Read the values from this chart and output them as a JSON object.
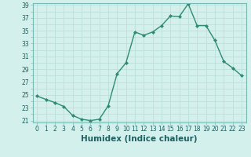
{
  "xlabel": "Humidex (Indice chaleur)",
  "hours": [
    0,
    1,
    2,
    3,
    4,
    5,
    6,
    7,
    8,
    9,
    10,
    11,
    12,
    13,
    14,
    15,
    16,
    17,
    18,
    19,
    20,
    21,
    22,
    23
  ],
  "values": [
    24.8,
    24.3,
    23.8,
    23.2,
    21.8,
    21.2,
    21.0,
    21.2,
    23.3,
    28.3,
    30.0,
    34.8,
    34.3,
    34.8,
    35.8,
    37.3,
    37.2,
    39.2,
    35.8,
    35.8,
    33.5,
    30.2,
    29.2,
    28.0
  ],
  "line_color": "#2e8b74",
  "marker": "D",
  "marker_size": 2.0,
  "bg_color": "#d4f0ec",
  "grid_color": "#b8ddd8",
  "ylim_min": 21,
  "ylim_max": 39,
  "yticks": [
    21,
    23,
    25,
    27,
    29,
    31,
    33,
    35,
    37,
    39
  ],
  "xticks": [
    0,
    1,
    2,
    3,
    4,
    5,
    6,
    7,
    8,
    9,
    10,
    11,
    12,
    13,
    14,
    15,
    16,
    17,
    18,
    19,
    20,
    21,
    22,
    23
  ],
  "tick_fontsize": 5.5,
  "xlabel_fontsize": 7.5,
  "linewidth": 1.0,
  "label_color": "#1a6060"
}
